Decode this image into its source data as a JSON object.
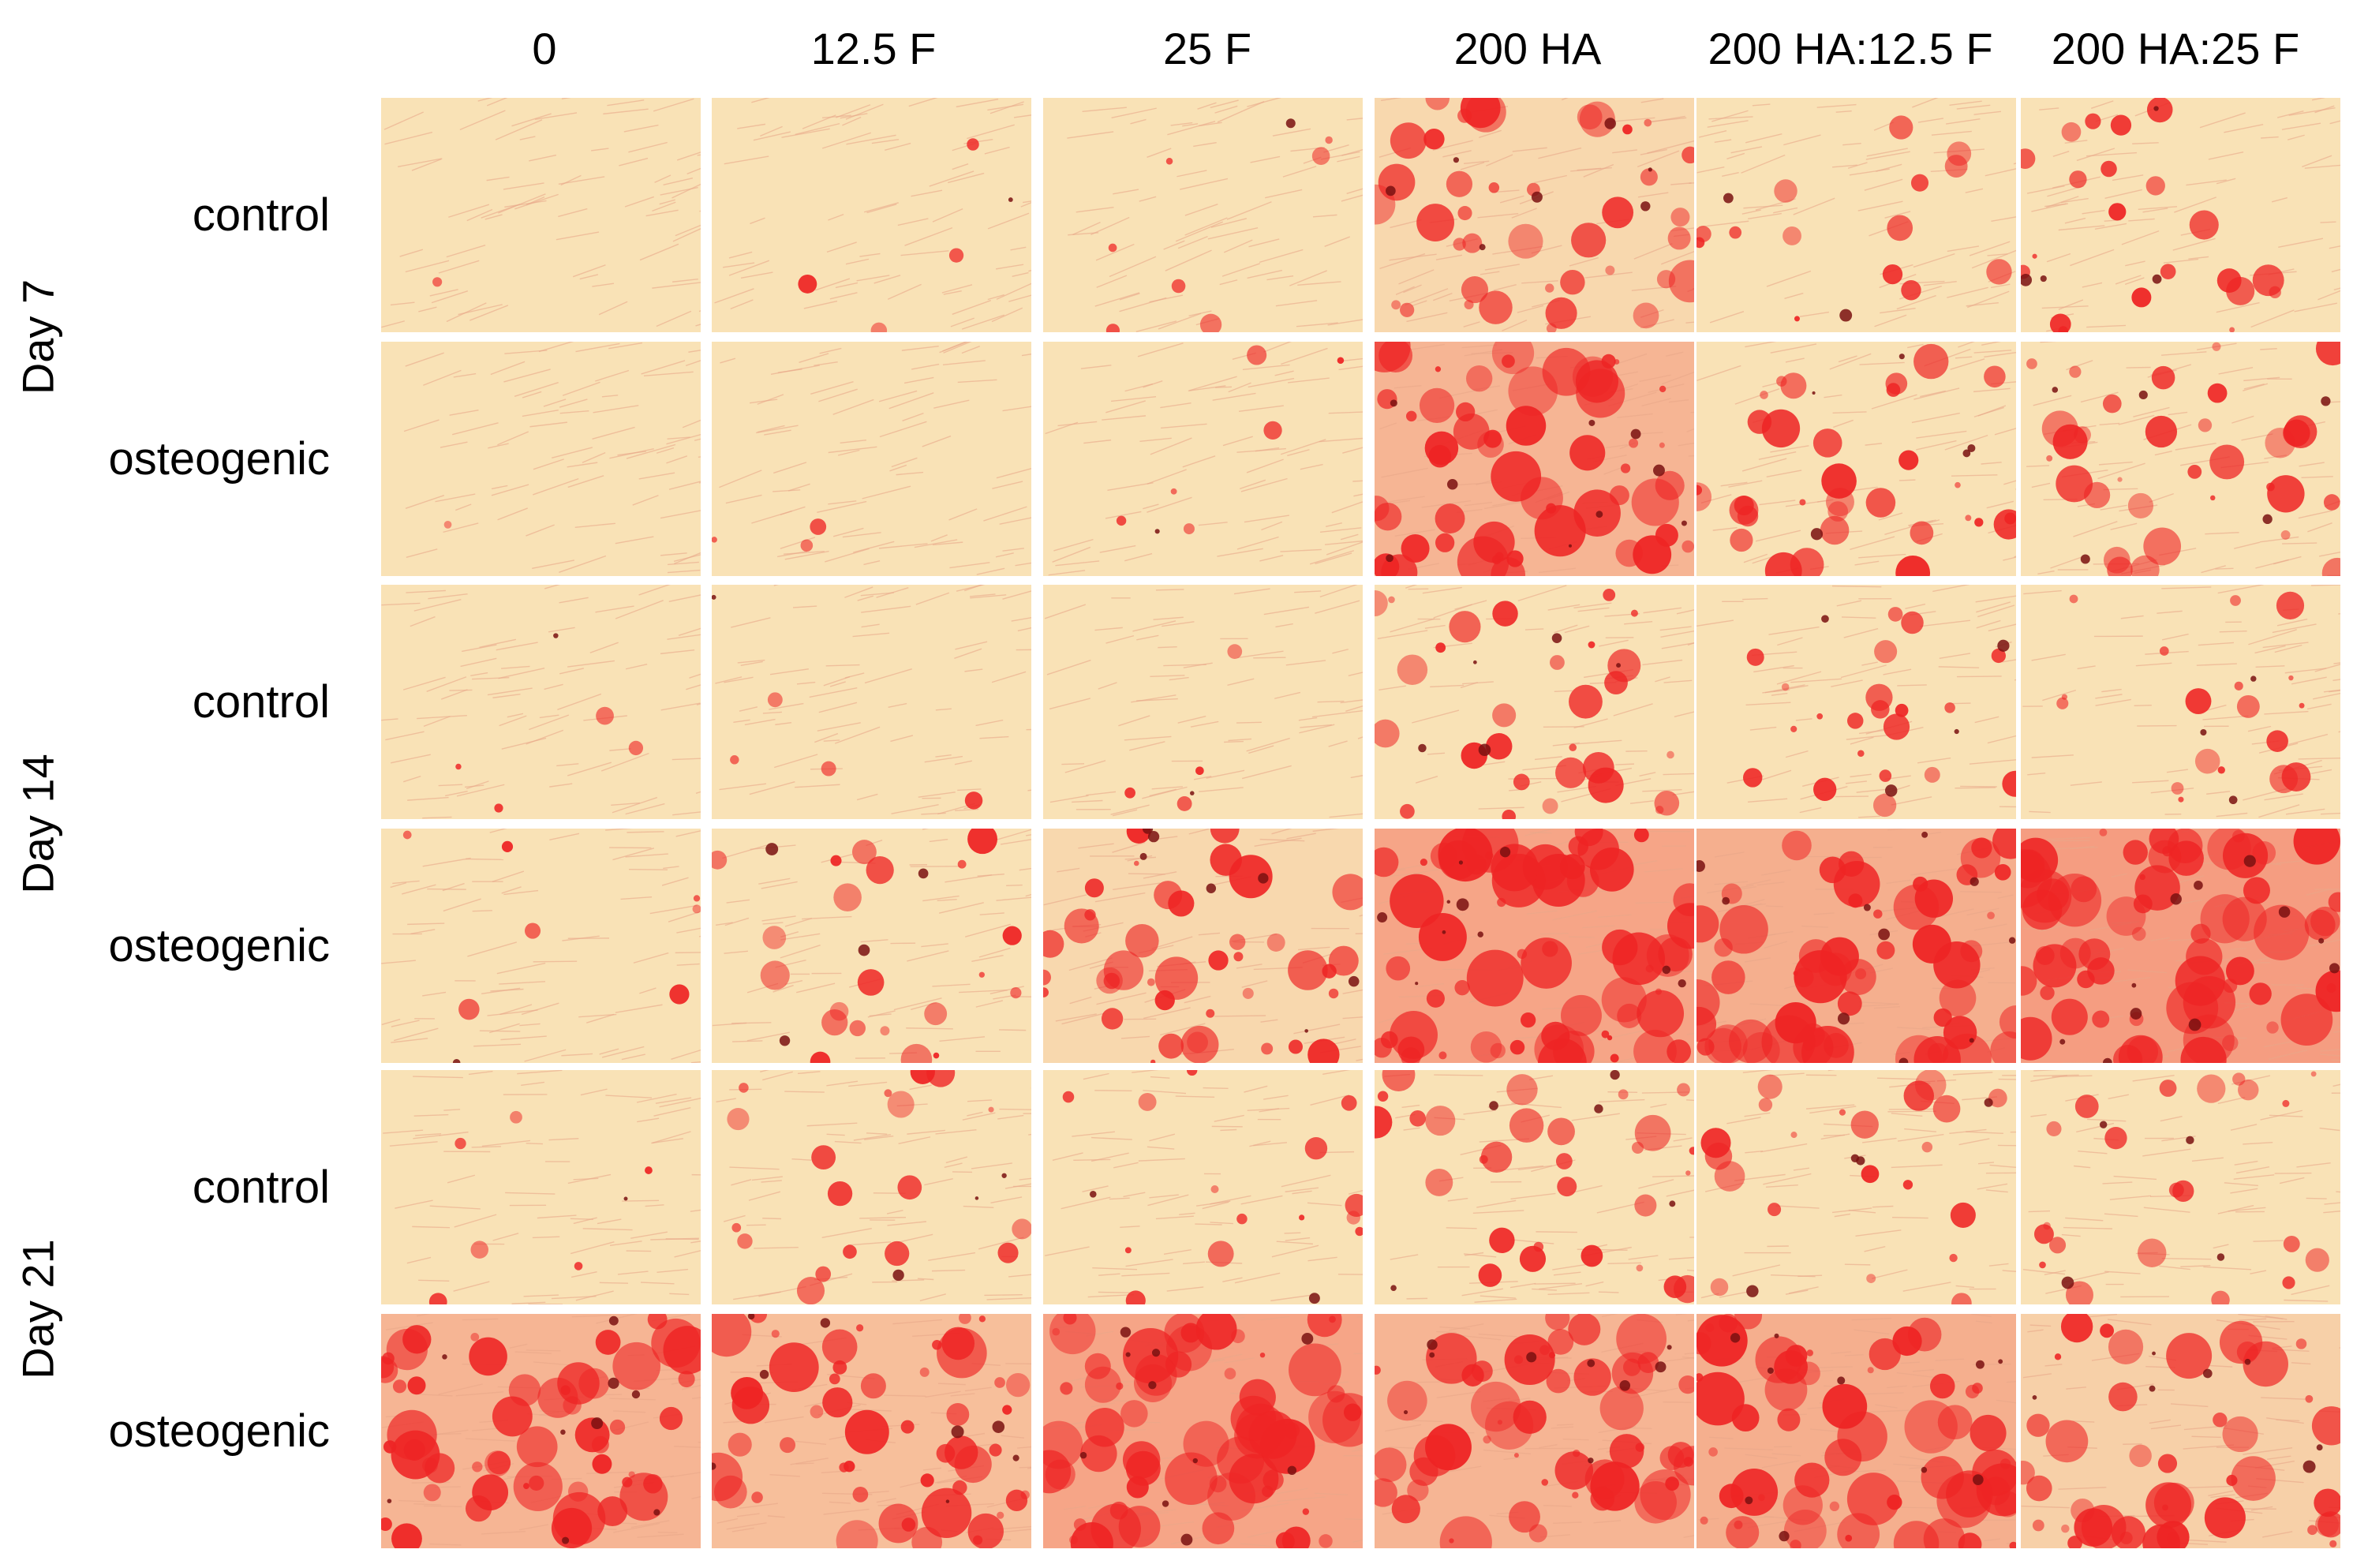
{
  "figure": {
    "columns": [
      "0",
      "12.5 F",
      "25 F",
      "200 HA",
      "200 HA:12.5 F",
      "200 HA:25 F"
    ],
    "days": [
      {
        "label": "Day 7",
        "conditions": [
          "control",
          "osteogenic"
        ]
      },
      {
        "label": "Day 14",
        "conditions": [
          "control",
          "osteogenic"
        ]
      },
      {
        "label": "Day 21",
        "conditions": [
          "control",
          "osteogenic"
        ]
      }
    ],
    "stain_levels": [
      [
        0.02,
        0.05,
        0.1,
        0.55,
        0.2,
        0.3
      ],
      [
        0.02,
        0.04,
        0.08,
        0.75,
        0.45,
        0.45
      ],
      [
        0.05,
        0.06,
        0.05,
        0.4,
        0.3,
        0.25
      ],
      [
        0.1,
        0.3,
        0.55,
        0.85,
        0.8,
        0.9
      ],
      [
        0.08,
        0.25,
        0.2,
        0.4,
        0.3,
        0.3
      ],
      [
        0.75,
        0.7,
        0.85,
        0.75,
        0.8,
        0.6
      ]
    ],
    "colors": {
      "background": "#f9e2b6",
      "fiber": "#e9a88a",
      "stain": "#ee2424",
      "dark_deposit": "#7a1010"
    }
  }
}
